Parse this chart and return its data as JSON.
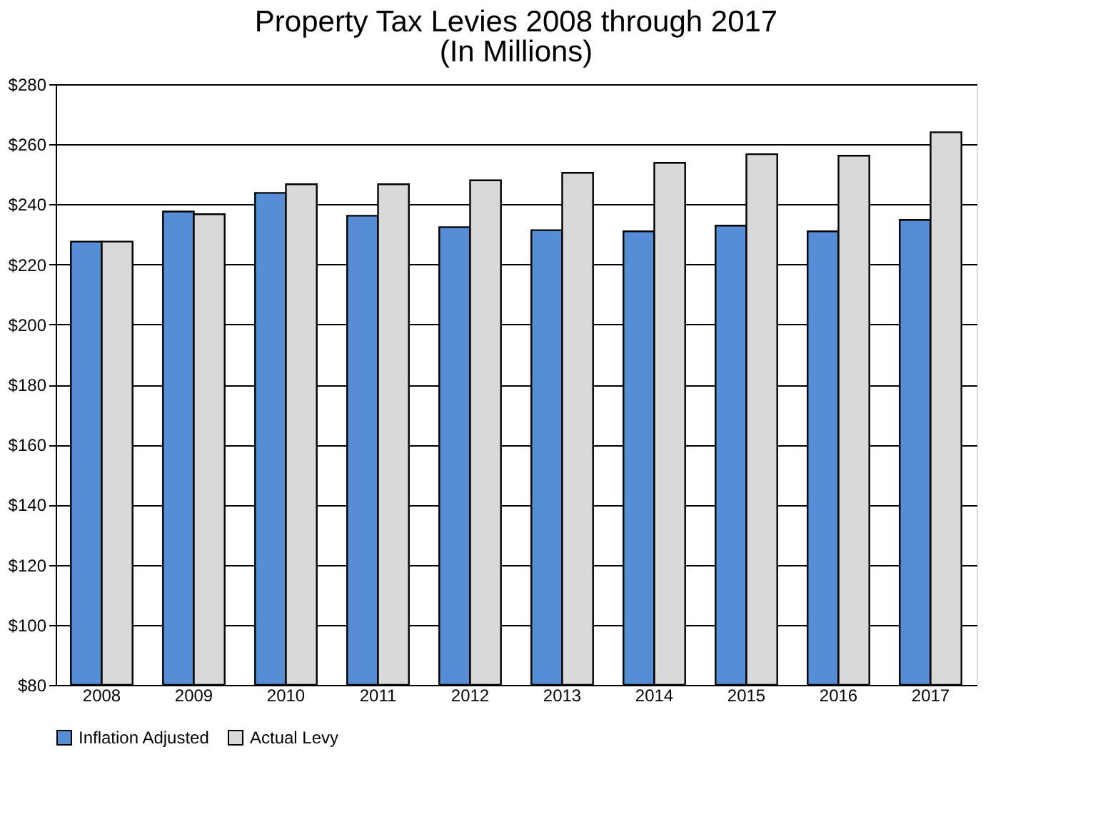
{
  "chart_data": {
    "type": "bar",
    "title": "Property Tax Levies 2008 through 2017",
    "subtitle": "(In Millions)",
    "categories": [
      "2008",
      "2009",
      "2010",
      "2011",
      "2012",
      "2013",
      "2014",
      "2015",
      "2016",
      "2017"
    ],
    "series": [
      {
        "name": "Inflation Adjusted",
        "color": "#558ed5",
        "values": [
          227.6,
          237.6,
          243.8,
          236.2,
          232.4,
          231.4,
          231,
          232.9,
          231,
          234.8
        ]
      },
      {
        "name": "Actual Levy",
        "color": "#d9d9d9",
        "values": [
          227.6,
          236.7,
          246.7,
          246.7,
          248,
          250.5,
          253.8,
          256.7,
          256.2,
          264
        ]
      }
    ],
    "ylim": [
      80,
      280
    ],
    "yticks": [
      {
        "value": 80,
        "label": "$80"
      },
      {
        "value": 100,
        "label": "$100"
      },
      {
        "value": 120,
        "label": "$120"
      },
      {
        "value": 140,
        "label": "$140"
      },
      {
        "value": 160,
        "label": "$160"
      },
      {
        "value": 180,
        "label": "$180"
      },
      {
        "value": 200,
        "label": "$200"
      },
      {
        "value": 220,
        "label": "$220"
      },
      {
        "value": 240,
        "label": "$240"
      },
      {
        "value": 260,
        "label": "$260"
      },
      {
        "value": 280,
        "label": "$280"
      }
    ],
    "grid": "y",
    "legend": "bottom"
  }
}
